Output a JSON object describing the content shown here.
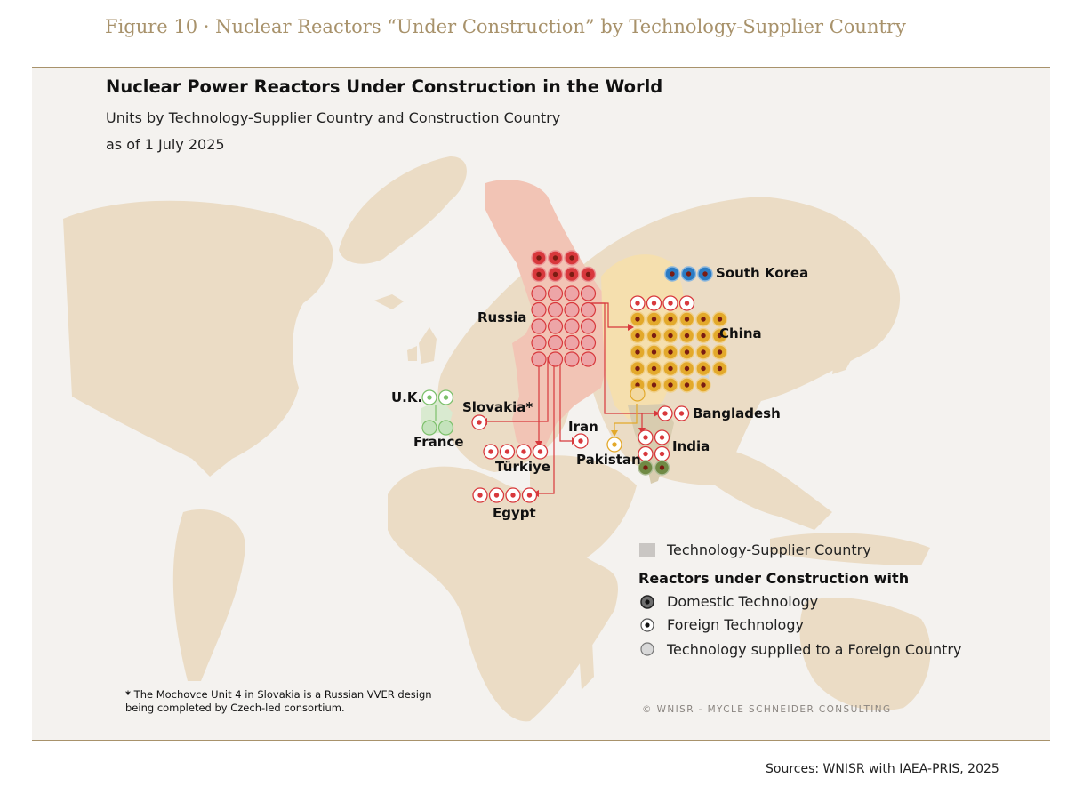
{
  "figure_caption": "Figure 10 · Nuclear Reactors “Under Construction” by Technology-Supplier Country",
  "title": "Nuclear Power Reactors Under Construction in the World",
  "subtitle_line1": "Units by Technology-Supplier Country and Construction Country",
  "subtitle_line2": "as of 1 July 2025",
  "countries": {
    "south_korea": "South Korea",
    "russia": "Russia",
    "china": "China",
    "uk": "U.K.",
    "slovakia": "Slovakia*",
    "iran": "Iran",
    "bangladesh": "Bangladesh",
    "france": "France",
    "turkiye": "Türkiye",
    "pakistan": "Pakistan",
    "india": "India",
    "egypt": "Egypt"
  },
  "reactor_counts": {
    "russia_domestic": 7,
    "russia_supplied_abroad": 20,
    "china_domestic": 29,
    "china_from_russia": 4,
    "china_supplied_abroad": 1,
    "south_korea_domestic": 3,
    "uk_from_france": 2,
    "france_supplied_abroad": 2,
    "slovakia_from_russia": 1,
    "iran_from_russia": 1,
    "bangladesh_from_russia": 2,
    "turkiye_from_russia": 4,
    "pakistan_from_china": 1,
    "india_from_russia": 4,
    "india_domestic": 2,
    "egypt_from_russia": 4
  },
  "colors": {
    "russia": "#d8383c",
    "china": "#e3a92b",
    "south_korea": "#2c7cc3",
    "france": "#7cc06b",
    "india": "#708a45",
    "land": "#ebdcc5",
    "russia_region": "#f2c4b5",
    "china_region": "#f5dfae"
  },
  "legend": {
    "supplier_country": "Technology-Supplier Country",
    "heading": "Reactors under Construction with",
    "domestic": "Domestic Technology",
    "foreign": "Foreign Technology",
    "supplied": "Technology supplied to a Foreign Country"
  },
  "footnote_line1": "The Mochovce Unit 4 in Slovakia is a Russian VVER design",
  "footnote_line2": "being completed by Czech-led consortium.",
  "footnote_marker": "*",
  "copyright": "© WNISR - MYCLE SCHNEIDER CONSULTING",
  "sources": "Sources: WNISR with IAEA-PRIS, 2025"
}
